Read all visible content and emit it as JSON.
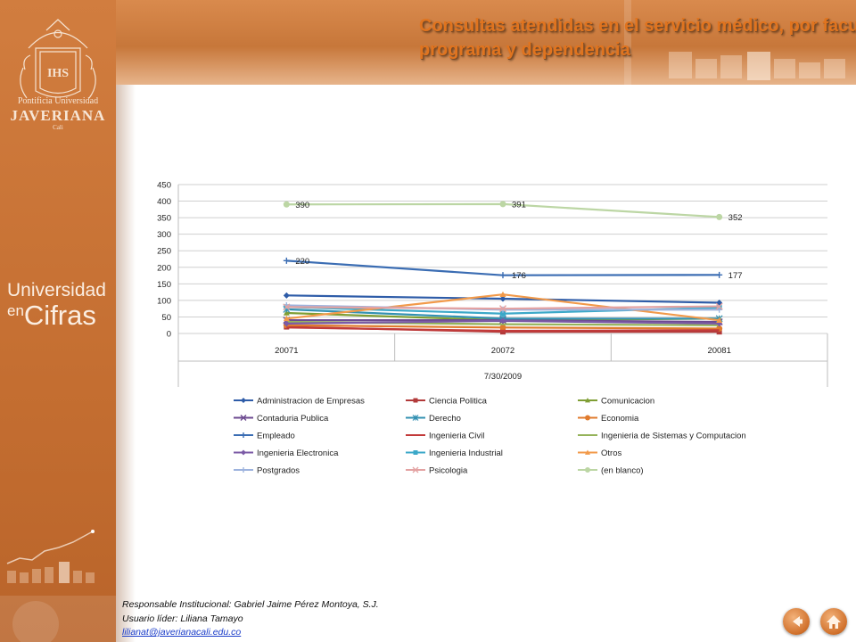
{
  "slide": {
    "title": "Consultas atendidas en el servicio médico, por facultad, programa y dependencia"
  },
  "sidebar": {
    "logo_line1": "Pontificia Universidad",
    "logo_line2": "JAVERIANA",
    "logo_line3": "Cali",
    "logo_seal": "IHS",
    "brand_line1": "Universidad",
    "brand_en": "en",
    "brand_big": "Cifras"
  },
  "footer": {
    "responsable": "Responsable Institucional: Gabriel Jaime Pérez Montoya, S.J.",
    "usuario": "Usuario líder: Liliana Tamayo",
    "email": "lilianat@javerianacali.edu.co"
  },
  "nav": {
    "back_icon": "back-arrow-icon",
    "home_icon": "home-icon"
  },
  "chart_data": {
    "type": "line",
    "categories": [
      "20071",
      "20072",
      "20081"
    ],
    "category_group_label": "7/30/2009",
    "ylim": [
      0,
      450
    ],
    "yticks": [
      0,
      50,
      100,
      150,
      200,
      250,
      300,
      350,
      400,
      450
    ],
    "grid": true,
    "legend_position": "bottom",
    "series": [
      {
        "name": "Administracion de Empresas",
        "values": [
          115,
          105,
          93
        ],
        "color": "#2e5ca8",
        "marker": "diamond"
      },
      {
        "name": "Ciencia Politica",
        "values": [
          20,
          5,
          5
        ],
        "color": "#b23a3a",
        "marker": "square"
      },
      {
        "name": "Comunicacion",
        "values": [
          62,
          40,
          45
        ],
        "color": "#7f9e34",
        "marker": "triangle"
      },
      {
        "name": "Contaduria Publica",
        "values": [
          40,
          40,
          35
        ],
        "color": "#6c4a90",
        "marker": "x"
      },
      {
        "name": "Derecho",
        "values": [
          73,
          45,
          45
        ],
        "color": "#3391b2",
        "marker": "star"
      },
      {
        "name": "Economia",
        "values": [
          25,
          18,
          15
        ],
        "color": "#e07b2d",
        "marker": "circle"
      },
      {
        "name": "Empleado",
        "values": [
          220,
          176,
          177
        ],
        "color": "#3b6db3",
        "marker": "plus",
        "labels": [
          "220",
          "176",
          "177"
        ]
      },
      {
        "name": "Ingenieria Civil",
        "values": [
          18,
          8,
          10
        ],
        "color": "#c23a3a",
        "marker": "none"
      },
      {
        "name": "Ingenieria de Sistemas y Computacion",
        "values": [
          35,
          28,
          25
        ],
        "color": "#95b35a",
        "marker": "none"
      },
      {
        "name": "Ingenieria Electronica",
        "values": [
          30,
          38,
          30
        ],
        "color": "#7b5aa6",
        "marker": "diamond"
      },
      {
        "name": "Ingenieria Industrial",
        "values": [
          80,
          60,
          78
        ],
        "color": "#3ba8c8",
        "marker": "square"
      },
      {
        "name": "Otros",
        "values": [
          45,
          118,
          40
        ],
        "color": "#f29a4a",
        "marker": "triangle"
      },
      {
        "name": "Postgrados",
        "values": [
          85,
          72,
          72
        ],
        "color": "#9db3de",
        "marker": "plus"
      },
      {
        "name": "Psicologia",
        "values": [
          80,
          75,
          82
        ],
        "color": "#e3a2a2",
        "marker": "x"
      },
      {
        "name": "(en blanco)",
        "values": [
          390,
          391,
          352
        ],
        "color": "#bcd6a4",
        "marker": "circle",
        "labels": [
          "390",
          "391",
          "352"
        ]
      }
    ]
  }
}
